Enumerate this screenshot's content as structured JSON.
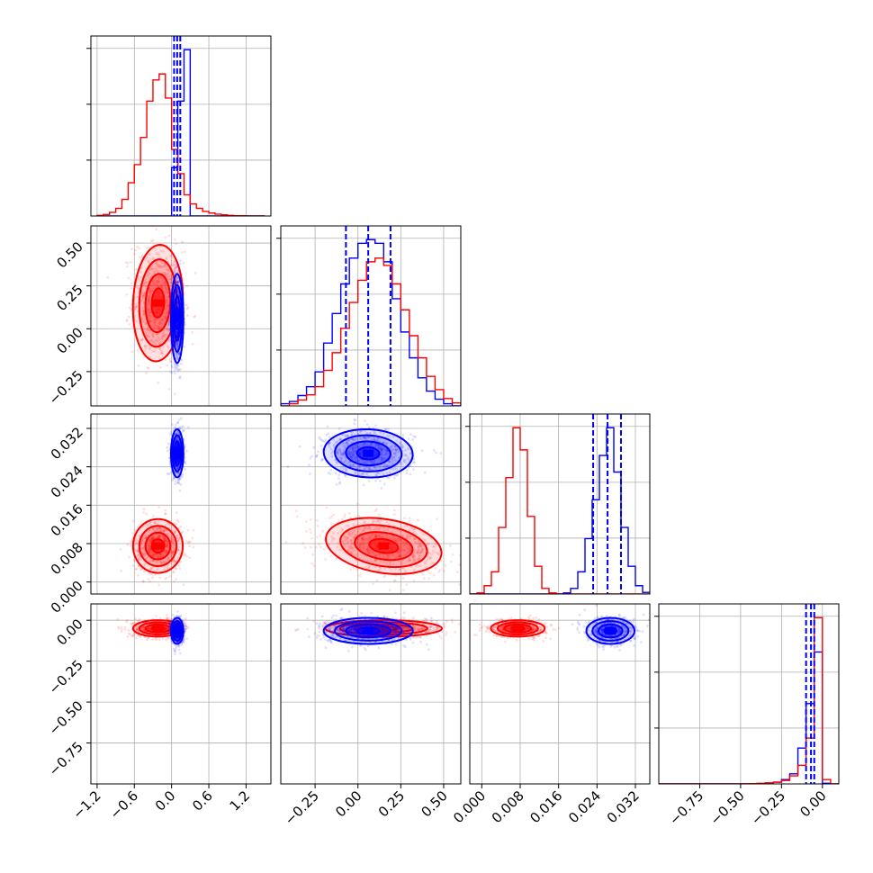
{
  "chart_data": {
    "type": "corner",
    "grid": true,
    "colors": {
      "red": "#ff0000",
      "blue": "#0000ff",
      "frame": "#000000",
      "grid": "#b0b0b0"
    },
    "series": [
      {
        "color": "#ff0000",
        "means": [
          -0.22,
          0.15,
          0.0075,
          -0.05
        ],
        "sigmas": [
          0.2,
          0.17,
          0.0028,
          0.025
        ],
        "correlations": {
          "1-0": -0.1,
          "2-1": -0.35
        }
      },
      {
        "color": "#0000ff",
        "means": [
          0.09,
          0.06,
          0.0268,
          -0.065
        ],
        "sigmas": [
          0.05,
          0.13,
          0.0025,
          0.04
        ],
        "correlations": {
          "2-1": -0.1
        }
      }
    ],
    "histograms": {
      "0": {
        "bins": [
          -1.2,
          -1.1,
          -1.0,
          -0.9,
          -0.8,
          -0.7,
          -0.6,
          -0.5,
          -0.4,
          -0.3,
          -0.2,
          -0.1,
          0.0,
          0.1,
          0.2,
          0.3,
          0.4,
          0.5,
          0.6,
          0.7,
          0.8,
          0.9,
          1.0,
          1.1,
          1.2,
          1.3,
          1.4,
          1.5
        ],
        "red": [
          0.2,
          0.5,
          1.2,
          2.5,
          5.5,
          11,
          17,
          26,
          38,
          45,
          47,
          39,
          22,
          14,
          7,
          4,
          2.5,
          1.5,
          1,
          0.6,
          0.4,
          0.2,
          0.1,
          0.1,
          0,
          0,
          0
        ],
        "blue": [
          0,
          0,
          0,
          0,
          0,
          0,
          0,
          0,
          0,
          0,
          0,
          0,
          16,
          38,
          55,
          0,
          0,
          0,
          0,
          0,
          0,
          0,
          0,
          0,
          0,
          0,
          0
        ],
        "ymax": 55,
        "quantiles": [
          0.04,
          0.09,
          0.14
        ]
      },
      "1": {
        "bins": [
          -0.45,
          -0.4,
          -0.35,
          -0.3,
          -0.25,
          -0.2,
          -0.15,
          -0.1,
          -0.05,
          0.0,
          0.05,
          0.1,
          0.15,
          0.2,
          0.25,
          0.3,
          0.35,
          0.4,
          0.45,
          0.5,
          0.55,
          0.6
        ],
        "red": [
          0,
          0.3,
          0.8,
          1.5,
          2.6,
          4.8,
          7.2,
          10.5,
          14,
          17,
          19.5,
          20,
          19,
          16.5,
          13,
          9.5,
          6.5,
          4,
          2.2,
          1,
          0.4
        ],
        "blue": [
          0.3,
          0.6,
          1.4,
          2.6,
          4.6,
          8.5,
          12.5,
          16.5,
          20,
          22,
          22.5,
          22,
          19.5,
          14.5,
          10,
          6.5,
          3.8,
          2,
          0.9,
          0.3,
          0
        ],
        "ymax": 22.5,
        "quantiles": [
          -0.07,
          0.06,
          0.19
        ]
      },
      "2": {
        "bins": [
          -0.0025,
          -0.001,
          0.0005,
          0.002,
          0.0035,
          0.005,
          0.0065,
          0.008,
          0.0095,
          0.011,
          0.0125,
          0.014,
          0.0155,
          0.017,
          0.0185,
          0.02,
          0.0215,
          0.023,
          0.0245,
          0.026,
          0.0275,
          0.029,
          0.0305,
          0.032,
          0.0335,
          0.035
        ],
        "red": [
          0,
          0.2,
          1.5,
          4,
          12,
          21,
          30,
          26,
          14,
          5,
          1,
          0.2,
          0,
          0,
          0,
          0,
          0,
          0,
          0,
          0,
          0,
          0,
          0,
          0,
          0
        ],
        "blue": [
          0,
          0,
          0,
          0,
          0,
          0,
          0,
          0,
          0,
          0,
          0,
          0,
          0,
          0.2,
          1,
          4,
          10,
          17,
          25,
          30,
          22,
          12,
          5,
          1.5,
          0.3
        ],
        "ymax": 30,
        "quantiles": [
          0.0232,
          0.0262,
          0.029
        ]
      },
      "3": {
        "bins": [
          -1.0,
          -0.95,
          -0.9,
          -0.85,
          -0.8,
          -0.75,
          -0.7,
          -0.65,
          -0.6,
          -0.55,
          -0.5,
          -0.45,
          -0.4,
          -0.35,
          -0.3,
          -0.25,
          -0.2,
          -0.15,
          -0.1,
          -0.05,
          0.0,
          0.05,
          0.1
        ],
        "red": [
          0,
          0,
          0,
          0,
          0,
          0,
          0,
          0,
          0,
          0,
          0.05,
          0.1,
          0.2,
          0.35,
          0.6,
          1.2,
          2.8,
          6.5,
          16,
          58,
          1.5,
          0
        ],
        "blue": [
          0,
          0,
          0,
          0,
          0,
          0,
          0,
          0,
          0,
          0,
          0,
          0,
          0.1,
          0.3,
          0.6,
          1.5,
          3.5,
          12.5,
          28,
          46,
          0.2,
          0
        ],
        "ymax": 58,
        "quantiles": [
          -0.1,
          -0.07,
          -0.05
        ]
      }
    },
    "axes": [
      {
        "range": [
          -1.3,
          1.6
        ],
        "ticks": [
          -1.2,
          -0.6,
          0.0,
          0.6,
          1.2
        ],
        "tick_labels": [
          "−1.2",
          "−0.6",
          "0.0",
          "0.6",
          "1.2"
        ]
      },
      {
        "range": [
          -0.45,
          0.6
        ],
        "ticks": [
          -0.25,
          0.0,
          0.25,
          0.5
        ],
        "tick_labels": [
          "−0.25",
          "0.00",
          "0.25",
          "0.50"
        ]
      },
      {
        "range": [
          -0.0025,
          0.035
        ],
        "ticks": [
          0.0,
          0.008,
          0.016,
          0.024,
          0.032
        ],
        "tick_labels": [
          "0.000",
          "0.008",
          "0.016",
          "0.024",
          "0.032"
        ]
      },
      {
        "range": [
          -1.0,
          0.1
        ],
        "ticks": [
          -0.75,
          -0.5,
          -0.25,
          0.0
        ],
        "tick_labels": [
          "−0.75",
          "−0.50",
          "−0.25",
          "0.00"
        ]
      }
    ]
  }
}
